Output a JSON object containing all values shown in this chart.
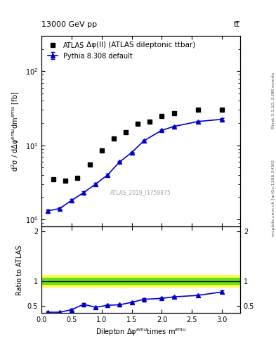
{
  "title_top": "13000 GeV pp",
  "title_top_right": "tt̅",
  "plot_title": "Δφ(ll) (ATLAS dileptonic ttbar)",
  "watermark": "ATLAS_2019_I1759875",
  "right_label": "mcplots.cern.ch [arXiv:1306.3436]",
  "rivet_label": "Rivet 3.1.10, 2.8M events",
  "xlabel": "Dilepton Δφ$^{emu}$times m$^{emu}$",
  "ylabel_main": "d$^2$σ / dΔφ$^{emu}$dm$^{emu}$ [fb]",
  "ylabel_ratio": "Ratio to ATLAS",
  "atlas_x": [
    0.2,
    0.4,
    0.6,
    0.8,
    1.0,
    1.2,
    1.4,
    1.6,
    1.8,
    2.0,
    2.2,
    2.6,
    3.0
  ],
  "atlas_y": [
    3.5,
    3.3,
    3.6,
    5.5,
    8.5,
    12.5,
    15.0,
    19.5,
    21.0,
    25.0,
    27.0,
    30.0,
    30.0
  ],
  "pythia_x": [
    0.1,
    0.3,
    0.5,
    0.7,
    0.9,
    1.1,
    1.3,
    1.5,
    1.7,
    2.0,
    2.2,
    2.6,
    3.0
  ],
  "pythia_y": [
    1.3,
    1.4,
    1.8,
    2.3,
    3.0,
    4.0,
    6.0,
    8.0,
    11.5,
    16.0,
    18.0,
    21.0,
    22.5
  ],
  "pythia_yerr": [
    0.05,
    0.05,
    0.07,
    0.08,
    0.1,
    0.12,
    0.18,
    0.22,
    0.3,
    0.4,
    0.45,
    0.52,
    0.58
  ],
  "ratio_x": [
    0.1,
    0.3,
    0.5,
    0.7,
    0.9,
    1.1,
    1.3,
    1.5,
    1.7,
    2.0,
    2.2,
    2.6,
    3.0
  ],
  "ratio_y": [
    0.37,
    0.37,
    0.42,
    0.53,
    0.47,
    0.51,
    0.52,
    0.57,
    0.63,
    0.65,
    0.68,
    0.71,
    0.78
  ],
  "ratio_yerr": [
    0.015,
    0.015,
    0.018,
    0.02,
    0.02,
    0.02,
    0.02,
    0.02,
    0.02,
    0.02,
    0.02,
    0.022,
    0.025
  ],
  "band_green_lo": 0.93,
  "band_green_hi": 1.07,
  "band_yellow_lo": 0.87,
  "band_yellow_hi": 1.13,
  "ylim_main": [
    0.8,
    300
  ],
  "ylim_ratio": [
    0.35,
    2.1
  ],
  "xlim": [
    0,
    3.3
  ],
  "line_color": "#0000cc",
  "marker_atlas_color": "#000000",
  "atlas_marker": "s",
  "pythia_marker": "^",
  "background_color": "#ffffff"
}
